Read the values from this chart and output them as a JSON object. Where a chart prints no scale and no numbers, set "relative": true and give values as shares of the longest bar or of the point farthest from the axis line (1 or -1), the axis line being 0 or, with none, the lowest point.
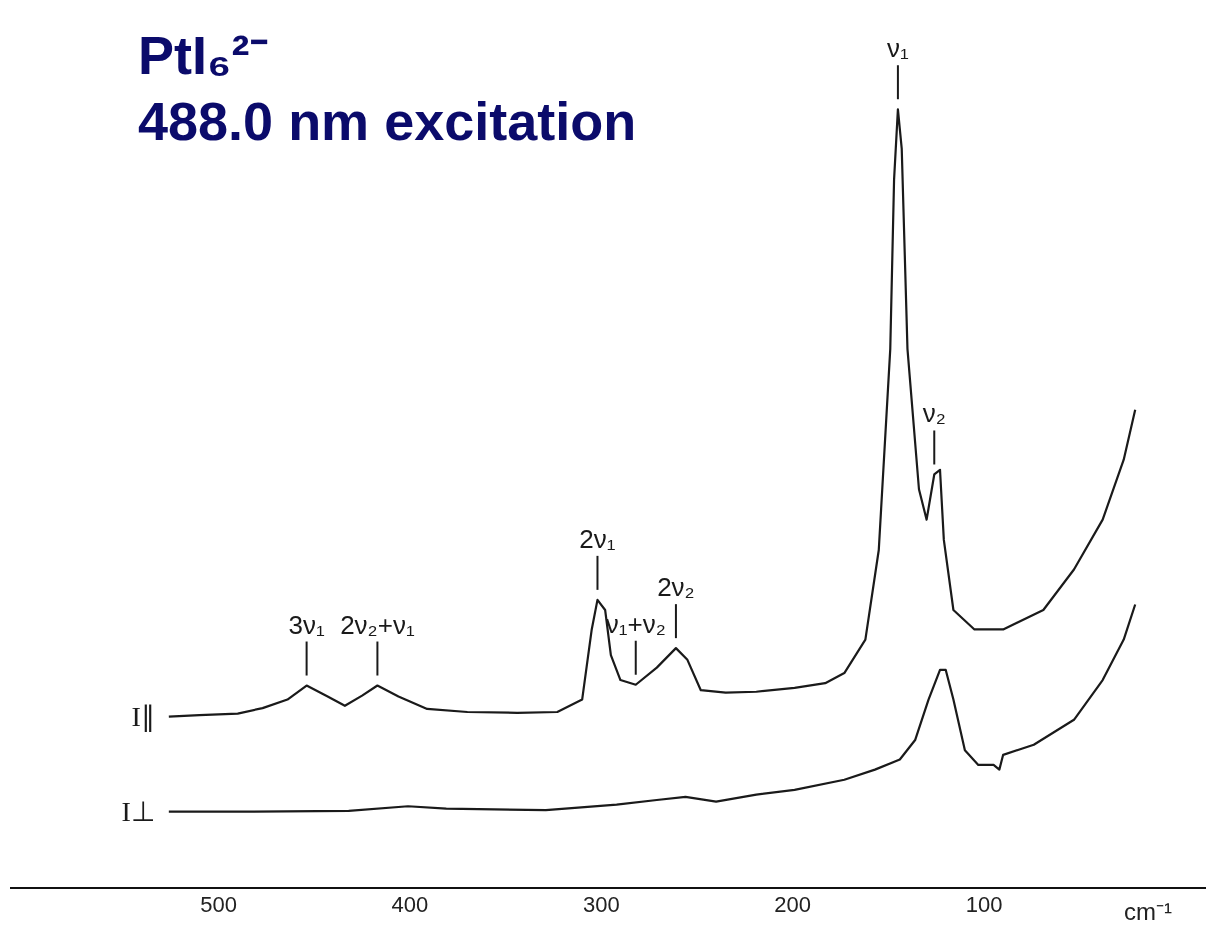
{
  "chart_data": {
    "type": "line",
    "title": "PtI₆²⁻",
    "subtitle": "488.0 nm excitation",
    "xlabel": "cm⁻¹",
    "relative": true,
    "tick_labels": "x",
    "xlim": [
      609,
      -16
    ],
    "xticks": [
      500,
      400,
      300,
      200,
      100
    ],
    "series": [
      {
        "name": "I∥",
        "color": "#1a1a1a",
        "x": [
          526,
          510,
          490,
          477,
          464,
          454,
          443,
          434,
          425,
          417,
          406,
          391,
          370,
          344,
          323,
          310,
          305,
          302,
          298,
          295,
          290,
          282,
          271,
          261,
          255,
          248,
          235,
          219,
          199,
          183,
          173,
          162,
          155,
          149,
          147,
          145,
          143,
          140,
          134,
          130,
          126,
          123,
          121,
          116,
          105,
          90,
          69,
          53,
          38,
          27,
          21
        ],
        "values": [
          0.22,
          0.222,
          0.224,
          0.231,
          0.242,
          0.26,
          0.246,
          0.234,
          0.247,
          0.26,
          0.246,
          0.23,
          0.226,
          0.225,
          0.226,
          0.242,
          0.332,
          0.37,
          0.357,
          0.299,
          0.267,
          0.261,
          0.283,
          0.308,
          0.293,
          0.254,
          0.251,
          0.252,
          0.257,
          0.263,
          0.276,
          0.319,
          0.434,
          0.692,
          0.91,
          1,
          0.949,
          0.692,
          0.512,
          0.473,
          0.531,
          0.537,
          0.447,
          0.357,
          0.332,
          0.332,
          0.357,
          0.409,
          0.473,
          0.55,
          0.614
        ]
      },
      {
        "name": "I⊥",
        "color": "#1a1a1a",
        "x": [
          526,
          484,
          432,
          401,
          381,
          329,
          292,
          271,
          256,
          240,
          219,
          199,
          173,
          157,
          144,
          136,
          129,
          123,
          120,
          116,
          110,
          103,
          95,
          92,
          90,
          74,
          53,
          38,
          27,
          21
        ],
        "values": [
          0.098,
          0.098,
          0.099,
          0.105,
          0.102,
          0.1,
          0.107,
          0.113,
          0.117,
          0.111,
          0.12,
          0.126,
          0.139,
          0.152,
          0.165,
          0.19,
          0.242,
          0.28,
          0.28,
          0.242,
          0.177,
          0.158,
          0.158,
          0.152,
          0.171,
          0.184,
          0.216,
          0.267,
          0.319,
          0.364
        ]
      }
    ],
    "annotations": [
      {
        "text": "ν₁",
        "x": 145,
        "y": 1
      },
      {
        "text": "ν₂",
        "x": 126,
        "y": 0.531
      },
      {
        "text": "2ν₁",
        "x": 302,
        "y": 0.37
      },
      {
        "text": "ν₁+ν₂",
        "x": 282,
        "y": 0.261
      },
      {
        "text": "2ν₂",
        "x": 261,
        "y": 0.308
      },
      {
        "text": "3ν₁",
        "x": 454,
        "y": 0.26
      },
      {
        "text": "2ν₂+ν₁",
        "x": 417,
        "y": 0.26
      }
    ]
  }
}
